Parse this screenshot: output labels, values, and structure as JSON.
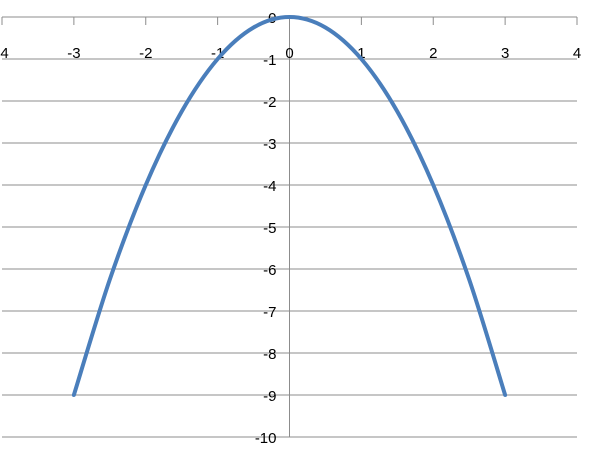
{
  "chart_data": {
    "type": "line",
    "title": "",
    "xlabel": "",
    "ylabel": "",
    "xlim": [
      -4,
      4
    ],
    "ylim": [
      -10,
      0
    ],
    "x_ticks": [
      "-4",
      "-3",
      "-2",
      "-1",
      "0",
      "1",
      "2",
      "3",
      "4"
    ],
    "y_ticks": [
      "0",
      "-1",
      "-2",
      "-3",
      "-4",
      "-5",
      "-6",
      "-7",
      "-8",
      "-9",
      "-10"
    ],
    "grid": "horizontal",
    "legend": "none",
    "series": [
      {
        "color": "#4a7ebb",
        "x": [
          -3,
          -2.5,
          -2,
          -1.5,
          -1,
          -0.5,
          0,
          0.5,
          1,
          1.5,
          2,
          2.5,
          3
        ],
        "y": [
          -9,
          -6.25,
          -4,
          -2.25,
          -1,
          -0.25,
          0,
          -0.25,
          -1,
          -2.25,
          -4,
          -6.25,
          -9
        ]
      }
    ]
  }
}
